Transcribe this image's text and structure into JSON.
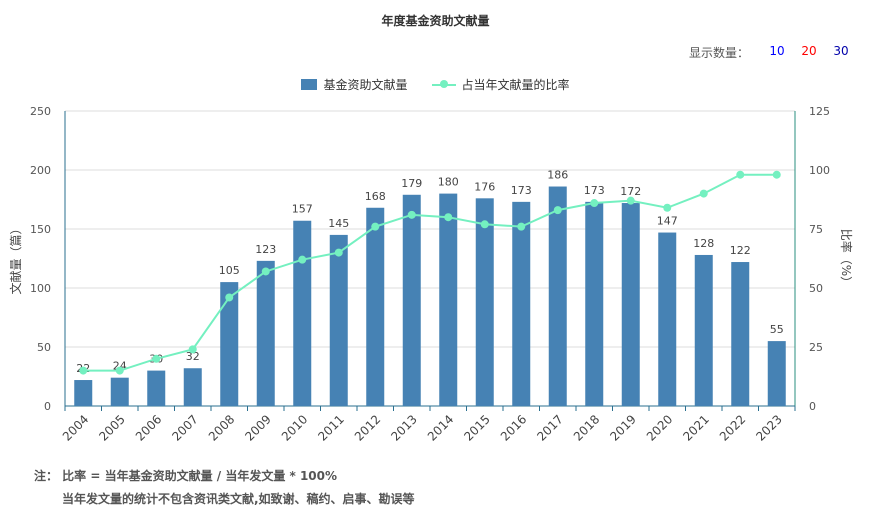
{
  "header": {
    "title": "年度基金资助文献量"
  },
  "display_count": {
    "label": "显示数量：",
    "options": [
      {
        "label": "10",
        "color": "#0000ff"
      },
      {
        "label": "20",
        "color": "#ff0000"
      },
      {
        "label": "30",
        "color": "#0000aa"
      }
    ]
  },
  "legend": {
    "bar_label": "基金资助文献量",
    "line_label": "占当年文献量的比率"
  },
  "colors": {
    "bar": "#4682b4",
    "line": "#74f0c0",
    "axis_left": "#2a6f8f",
    "axis_right": "#2a8f7f",
    "grid": "#dddddd"
  },
  "chart_data": {
    "type": "bar",
    "categories": [
      "2004",
      "2005",
      "2006",
      "2007",
      "2008",
      "2009",
      "2010",
      "2011",
      "2012",
      "2013",
      "2014",
      "2015",
      "2016",
      "2017",
      "2018",
      "2019",
      "2020",
      "2021",
      "2022",
      "2023"
    ],
    "series": [
      {
        "name": "基金资助文献量",
        "type": "bar",
        "axis": "left",
        "values": [
          22,
          24,
          30,
          32,
          105,
          123,
          157,
          145,
          168,
          179,
          180,
          176,
          173,
          186,
          173,
          172,
          147,
          128,
          122,
          55
        ]
      },
      {
        "name": "占当年文献量的比率",
        "type": "line",
        "axis": "right",
        "values": [
          15,
          15,
          20,
          24,
          46,
          57,
          62,
          65,
          76,
          81,
          80,
          77,
          76,
          83,
          86,
          87,
          84,
          90,
          98,
          98
        ]
      }
    ],
    "ylabel": "文献量（篇）",
    "y2label": "比率（%）",
    "ylim": [
      0,
      250
    ],
    "y2lim": [
      0,
      125
    ],
    "yticks": [
      0,
      50,
      100,
      150,
      200,
      250
    ],
    "y2ticks": [
      0,
      25,
      50,
      75,
      100,
      125
    ],
    "grid": true,
    "legend_position": "top-center"
  },
  "notes": {
    "line1": "注： 比率 = 当年基金资助文献量 / 当年发文量 * 100%",
    "line2": "当年发文量的统计不包含资讯类文献,如致谢、稿约、启事、勘误等"
  }
}
